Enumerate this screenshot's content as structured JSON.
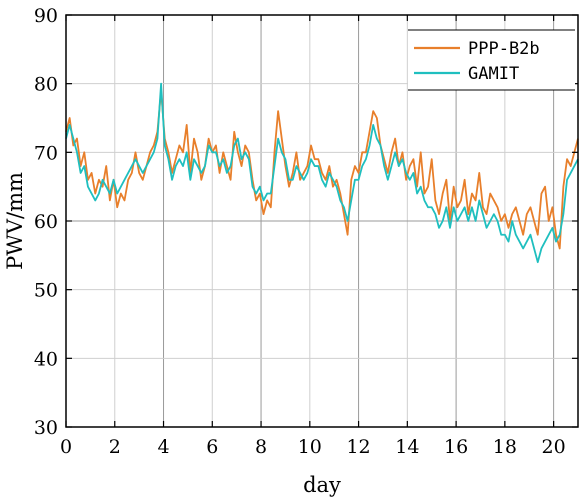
{
  "chart_data": {
    "type": "line",
    "title": "",
    "xlabel": "day",
    "ylabel": "PWV/mm",
    "xlim": [
      0,
      21
    ],
    "ylim": [
      30,
      90
    ],
    "xticks": [
      0,
      2,
      4,
      6,
      8,
      10,
      12,
      14,
      16,
      18,
      20
    ],
    "yticks": [
      30,
      40,
      50,
      60,
      70,
      80,
      90
    ],
    "xtick_labels": [
      "0",
      "2",
      "4",
      "6",
      "8",
      "10",
      "12",
      "14",
      "16",
      "18",
      "20"
    ],
    "ytick_labels": [
      "30",
      "40",
      "50",
      "60",
      "70",
      "80",
      "90"
    ],
    "grid": true,
    "legend_position": "top-right",
    "series": [
      {
        "name": "PPP-B2b",
        "color": "#E87F2B",
        "x": [
          0,
          0.15,
          0.3,
          0.45,
          0.6,
          0.75,
          0.9,
          1.05,
          1.2,
          1.35,
          1.5,
          1.65,
          1.8,
          1.95,
          2.1,
          2.25,
          2.4,
          2.55,
          2.7,
          2.85,
          3.0,
          3.15,
          3.3,
          3.45,
          3.6,
          3.75,
          3.9,
          4.05,
          4.2,
          4.35,
          4.5,
          4.65,
          4.8,
          4.95,
          5.1,
          5.25,
          5.4,
          5.55,
          5.7,
          5.85,
          6.0,
          6.15,
          6.3,
          6.45,
          6.6,
          6.75,
          6.9,
          7.05,
          7.2,
          7.35,
          7.5,
          7.65,
          7.8,
          7.95,
          8.1,
          8.25,
          8.4,
          8.55,
          8.7,
          8.85,
          9.0,
          9.15,
          9.3,
          9.45,
          9.6,
          9.75,
          9.9,
          10.05,
          10.2,
          10.35,
          10.5,
          10.65,
          10.8,
          10.95,
          11.1,
          11.25,
          11.4,
          11.55,
          11.7,
          11.85,
          12.0,
          12.15,
          12.3,
          12.45,
          12.6,
          12.75,
          12.9,
          13.05,
          13.2,
          13.35,
          13.5,
          13.65,
          13.8,
          13.95,
          14.1,
          14.25,
          14.4,
          14.55,
          14.7,
          14.85,
          15.0,
          15.15,
          15.3,
          15.45,
          15.6,
          15.75,
          15.9,
          16.05,
          16.2,
          16.35,
          16.5,
          16.65,
          16.8,
          16.95,
          17.1,
          17.25,
          17.4,
          17.55,
          17.7,
          17.85,
          18.0,
          18.15,
          18.3,
          18.45,
          18.6,
          18.75,
          18.9,
          19.05,
          19.2,
          19.35,
          19.5,
          19.65,
          19.8,
          19.95,
          20.1,
          20.25,
          20.4,
          20.55,
          20.7,
          20.85,
          21.0
        ],
        "values": [
          73,
          75,
          71,
          72,
          68,
          70,
          66,
          67,
          64,
          66,
          65,
          68,
          63,
          66,
          62,
          64,
          63,
          66,
          67,
          70,
          67,
          66,
          68,
          70,
          71,
          73,
          79,
          72,
          70,
          67,
          69,
          71,
          70,
          74,
          67,
          72,
          70,
          66,
          68,
          72,
          70,
          71,
          67,
          70,
          68,
          66,
          73,
          70,
          68,
          71,
          70,
          66,
          63,
          64,
          61,
          63,
          62,
          70,
          76,
          72,
          68,
          65,
          67,
          70,
          66,
          67,
          68,
          71,
          69,
          69,
          67,
          66,
          68,
          65,
          66,
          64,
          61,
          58,
          66,
          68,
          67,
          70,
          70,
          73,
          76,
          75,
          71,
          69,
          67,
          70,
          72,
          68,
          70,
          66,
          68,
          69,
          65,
          70,
          64,
          65,
          69,
          63,
          61,
          64,
          66,
          60,
          65,
          62,
          63,
          66,
          61,
          64,
          63,
          67,
          62,
          61,
          64,
          63,
          62,
          60,
          61,
          59,
          61,
          62,
          60,
          58,
          61,
          62,
          60,
          58,
          64,
          65,
          60,
          62,
          58,
          56,
          65,
          69,
          68,
          70,
          72
        ]
      },
      {
        "name": "GAMIT",
        "color": "#1FBFBF",
        "x": [
          0,
          0.15,
          0.3,
          0.45,
          0.6,
          0.75,
          0.9,
          1.05,
          1.2,
          1.35,
          1.5,
          1.65,
          1.8,
          1.95,
          2.1,
          2.25,
          2.4,
          2.55,
          2.7,
          2.85,
          3.0,
          3.15,
          3.3,
          3.45,
          3.6,
          3.75,
          3.9,
          4.05,
          4.2,
          4.35,
          4.5,
          4.65,
          4.8,
          4.95,
          5.1,
          5.25,
          5.4,
          5.55,
          5.7,
          5.85,
          6.0,
          6.15,
          6.3,
          6.45,
          6.6,
          6.75,
          6.9,
          7.05,
          7.2,
          7.35,
          7.5,
          7.65,
          7.8,
          7.95,
          8.1,
          8.25,
          8.4,
          8.55,
          8.7,
          8.85,
          9.0,
          9.15,
          9.3,
          9.45,
          9.6,
          9.75,
          9.9,
          10.05,
          10.2,
          10.35,
          10.5,
          10.65,
          10.8,
          10.95,
          11.1,
          11.25,
          11.4,
          11.55,
          11.7,
          11.85,
          12.0,
          12.15,
          12.3,
          12.45,
          12.6,
          12.75,
          12.9,
          13.05,
          13.2,
          13.35,
          13.5,
          13.65,
          13.8,
          13.95,
          14.1,
          14.25,
          14.4,
          14.55,
          14.7,
          14.85,
          15.0,
          15.15,
          15.3,
          15.45,
          15.6,
          15.75,
          15.9,
          16.05,
          16.2,
          16.35,
          16.5,
          16.65,
          16.8,
          16.95,
          17.1,
          17.25,
          17.4,
          17.55,
          17.7,
          17.85,
          18.0,
          18.15,
          18.3,
          18.45,
          18.6,
          18.75,
          18.9,
          19.05,
          19.2,
          19.35,
          19.5,
          19.65,
          19.8,
          19.95,
          20.1,
          20.25,
          20.4,
          20.55,
          20.7,
          20.85,
          21.0
        ],
        "values": [
          72,
          74,
          72,
          70,
          67,
          68,
          65,
          64,
          63,
          64,
          66,
          65,
          64,
          66,
          64,
          65,
          66,
          67,
          68,
          69,
          68,
          67,
          68,
          69,
          70,
          72,
          80,
          71,
          69,
          66,
          68,
          69,
          68,
          70,
          66,
          69,
          68,
          67,
          68,
          71,
          70,
          70,
          68,
          69,
          67,
          68,
          71,
          72,
          69,
          70,
          69,
          65,
          64,
          65,
          63,
          64,
          64,
          68,
          72,
          70,
          69,
          66,
          66,
          68,
          67,
          66,
          67,
          69,
          68,
          68,
          66,
          65,
          67,
          66,
          65,
          63,
          62,
          60,
          63,
          66,
          66,
          68,
          69,
          71,
          74,
          72,
          71,
          68,
          66,
          68,
          70,
          68,
          69,
          67,
          66,
          67,
          64,
          65,
          63,
          62,
          62,
          61,
          59,
          60,
          62,
          59,
          62,
          60,
          61,
          62,
          60,
          62,
          60,
          63,
          61,
          59,
          60,
          61,
          60,
          58,
          58,
          57,
          60,
          58,
          57,
          56,
          57,
          58,
          56,
          54,
          56,
          57,
          58,
          59,
          57,
          58,
          61,
          66,
          67,
          68,
          69
        ]
      }
    ]
  }
}
